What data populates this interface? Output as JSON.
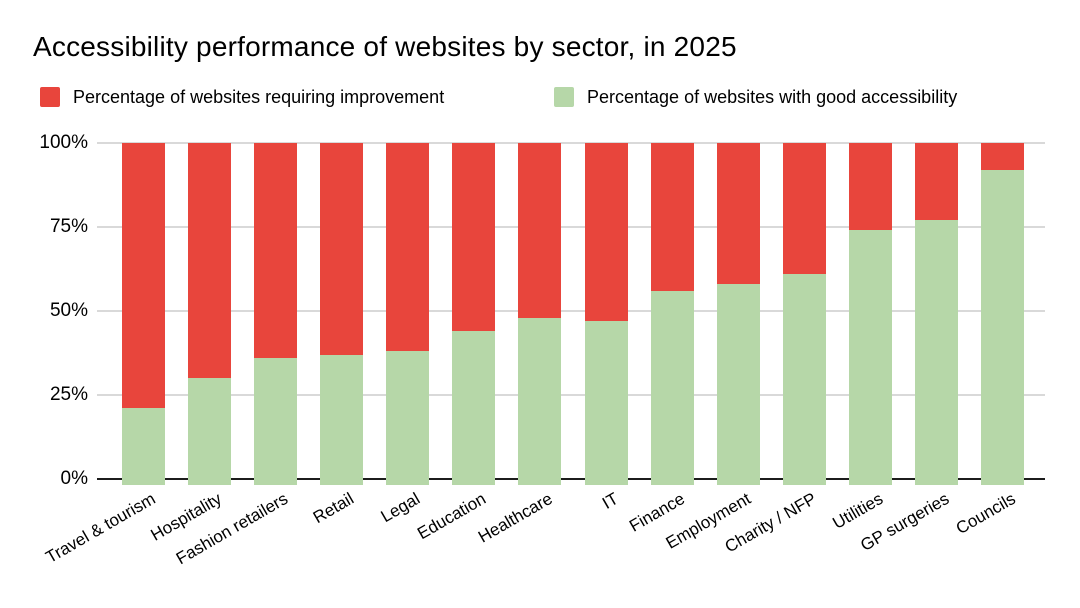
{
  "chart_data": {
    "type": "bar",
    "stacked": true,
    "title": "Accessibility performance of websites by sector, in 2025",
    "categories": [
      "Travel & tourism",
      "Hospitality",
      "Fashion retailers",
      "Retail",
      "Legal",
      "Education",
      "Healthcare",
      "IT",
      "Finance",
      "Employment",
      "Charity / NFP",
      "Utilities",
      "GP surgeries",
      "Councils"
    ],
    "series": [
      {
        "name": "Percentage of websites requiring improvement",
        "color": "#E8453C",
        "values": [
          79,
          70,
          64,
          63,
          62,
          56,
          52,
          53,
          44,
          42,
          39,
          26,
          23,
          8
        ]
      },
      {
        "name": "Percentage of websites with good accessibility",
        "color": "#B6D7A8",
        "values": [
          21,
          30,
          36,
          37,
          38,
          44,
          48,
          47,
          56,
          58,
          61,
          74,
          77,
          92
        ]
      }
    ],
    "yticks": [
      {
        "label": "0%",
        "value": 0
      },
      {
        "label": "25%",
        "value": 25
      },
      {
        "label": "50%",
        "value": 50
      },
      {
        "label": "75%",
        "value": 75
      },
      {
        "label": "100%",
        "value": 100
      }
    ],
    "ylim": [
      0,
      100
    ],
    "grid": true,
    "legend_position": "top",
    "colors": {
      "gridline": "#D9D9D9",
      "baseline": "#1C1C1C",
      "text": "#000000",
      "background": "#FFFFFF"
    }
  }
}
